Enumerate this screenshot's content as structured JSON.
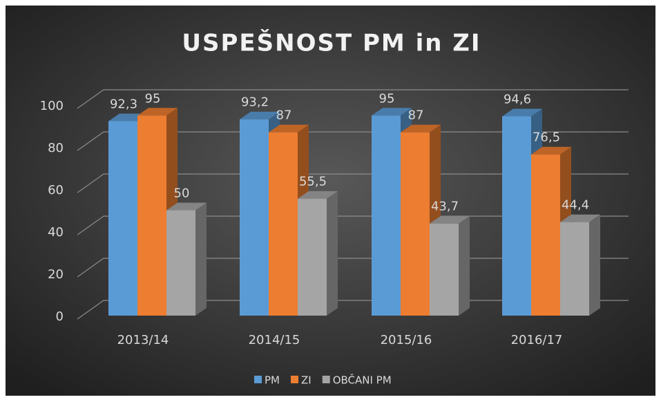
{
  "chart_data": {
    "type": "bar3d",
    "title": "USPEŠNOST PM in ZI",
    "categories": [
      "2013/14",
      "2014/15",
      "2015/16",
      "2016/17"
    ],
    "series": [
      {
        "name": "PM",
        "color": "#5b9bd5",
        "values": [
          92.3,
          93.2,
          95,
          94.6
        ],
        "value_labels": [
          "92,3",
          "93,2",
          "95",
          "94,6"
        ]
      },
      {
        "name": "ZI",
        "color": "#ed7d31",
        "values": [
          95,
          87,
          87,
          76.5
        ],
        "value_labels": [
          "95",
          "87",
          "87",
          "76,5"
        ]
      },
      {
        "name": "OBČANI PM",
        "color": "#a5a5a5",
        "values": [
          50,
          55.5,
          43.7,
          44.4
        ],
        "value_labels": [
          "50",
          "55,5",
          "43,7",
          "44,4"
        ]
      }
    ],
    "ylim": [
      0,
      100
    ],
    "yticks": [
      0,
      20,
      40,
      60,
      80,
      100
    ],
    "grid": true,
    "legend": "bottom"
  }
}
